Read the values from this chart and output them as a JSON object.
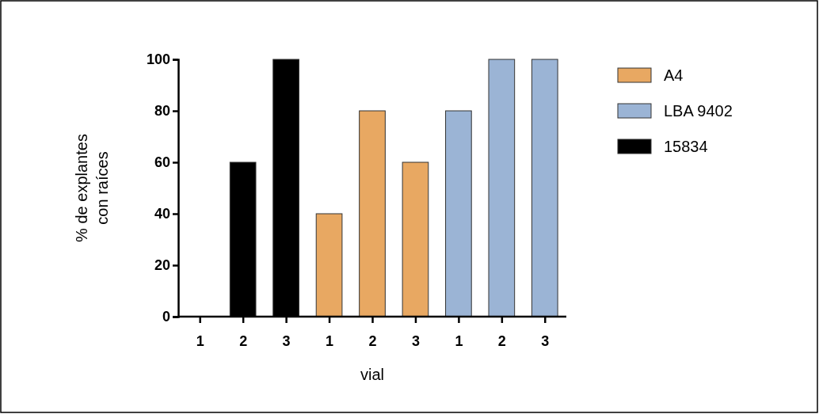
{
  "chart_data": {
    "type": "bar",
    "xlabel": "vial",
    "ylabel": "% de explantes\ncon raíces",
    "categories": [
      "1",
      "2",
      "3",
      "1",
      "2",
      "3",
      "1",
      "2",
      "3"
    ],
    "series": [
      {
        "name": "A4",
        "color": "#e8a862",
        "values": [
          null,
          null,
          null,
          40,
          80,
          60,
          null,
          null,
          null
        ]
      },
      {
        "name": "LBA 9402",
        "color": "#9bb4d5",
        "values": [
          null,
          null,
          null,
          null,
          null,
          null,
          80,
          100,
          100
        ]
      },
      {
        "name": "15834",
        "color": "#000000",
        "values": [
          0,
          60,
          100,
          null,
          null,
          null,
          null,
          null,
          null
        ]
      }
    ],
    "ylim": [
      0,
      100
    ],
    "yticks": [
      0,
      20,
      40,
      60,
      80,
      100
    ],
    "legend": "right"
  }
}
